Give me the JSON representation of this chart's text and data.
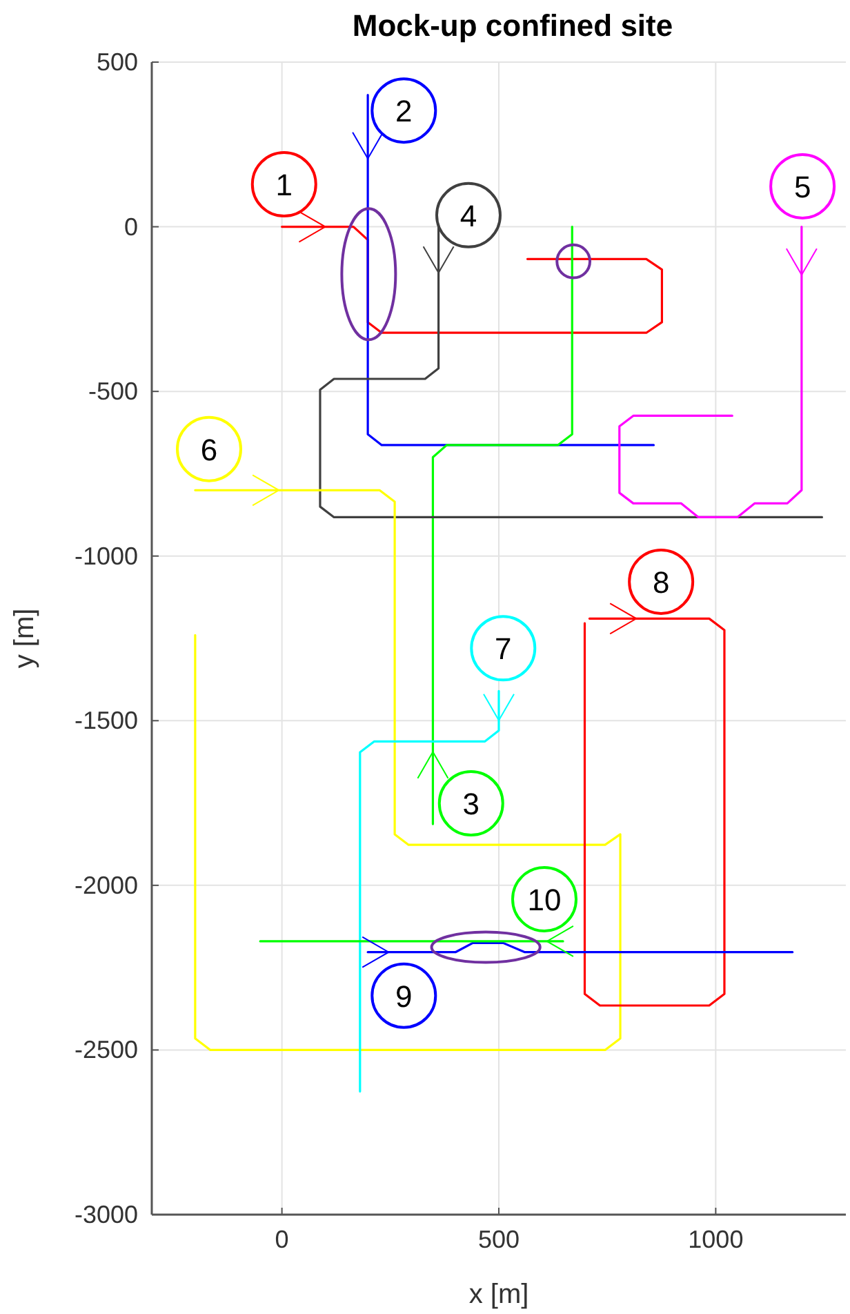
{
  "chart_data": {
    "type": "line",
    "title": "Mock-up confined site",
    "xlabel": "x [m]",
    "ylabel": "y [m]",
    "xlim": [
      -300,
      1300
    ],
    "ylim": [
      -3000,
      500
    ],
    "xticks": [
      0,
      500,
      1000
    ],
    "yticks": [
      -3000,
      -2500,
      -2000,
      -1500,
      -1000,
      -500,
      0,
      500
    ],
    "grid": true,
    "series": [
      {
        "color": "#ff0000",
        "x": [
          0,
          100,
          165,
          198,
          198,
          230,
          840,
          876,
          876,
          840,
          566
        ],
        "values": [
          0,
          0,
          0,
          -40,
          -290,
          -322,
          -322,
          -290,
          -130,
          -98,
          -98
        ]
      },
      {
        "color": "#0000ff",
        "x": [
          198,
          198,
          198,
          230,
          857
        ],
        "values": [
          400,
          207,
          -630,
          -663,
          -663
        ]
      },
      {
        "color": "#00ff00",
        "x": [
          348,
          348,
          348,
          380,
          636,
          669,
          669
        ],
        "values": [
          -1814,
          -1595,
          -700,
          -663,
          -663,
          -630,
          0
        ]
      },
      {
        "color": "#404040",
        "x": [
          361,
          361,
          361,
          330,
          120,
          88,
          88,
          120,
          1245
        ],
        "values": [
          0,
          -140,
          -430,
          -462,
          -462,
          -495,
          -850,
          -882,
          -882
        ]
      },
      {
        "color": "#ff00ff",
        "x": [
          1198,
          1198,
          1198,
          1165,
          1090,
          1050,
          960,
          920,
          810,
          778,
          778,
          810,
          1038
        ],
        "values": [
          0,
          -146,
          -800,
          -840,
          -840,
          -882,
          -882,
          -840,
          -840,
          -808,
          -606,
          -574,
          -574
        ]
      },
      {
        "color": "#ffff00",
        "x": [
          -200,
          -7,
          225,
          260,
          260,
          292,
          745,
          780,
          780,
          745,
          -165,
          -200,
          -200
        ],
        "values": [
          -800,
          -800,
          -800,
          -835,
          -1845,
          -1877,
          -1877,
          -1845,
          -2465,
          -2500,
          -2500,
          -2465,
          -1240
        ]
      },
      {
        "color": "#00ffff",
        "x": [
          500,
          500,
          500,
          468,
          213,
          180,
          180
        ],
        "values": [
          -1410,
          -1499,
          -1530,
          -1563,
          -1563,
          -1596,
          -2626
        ]
      },
      {
        "color": "#ff0000",
        "x": [
          709,
          817,
          985,
          1020,
          1020,
          985,
          733,
          698,
          698
        ],
        "values": [
          -1190,
          -1190,
          -1190,
          -1225,
          -2330,
          -2365,
          -2365,
          -2330,
          -1204
        ]
      },
      {
        "color": "#0000ff",
        "x": [
          198,
          246,
          400,
          440,
          510,
          560,
          1177
        ],
        "values": [
          -2203,
          -2203,
          -2203,
          -2175,
          -2175,
          -2203,
          -2203
        ]
      },
      {
        "color": "#00ff00",
        "x": [
          648,
          611,
          -50
        ],
        "values": [
          -2170,
          -2170,
          -2170
        ]
      }
    ],
    "annotations": [
      "1",
      "2",
      "3",
      "4",
      "5",
      "6",
      "7",
      "8",
      "9",
      "10"
    ]
  }
}
